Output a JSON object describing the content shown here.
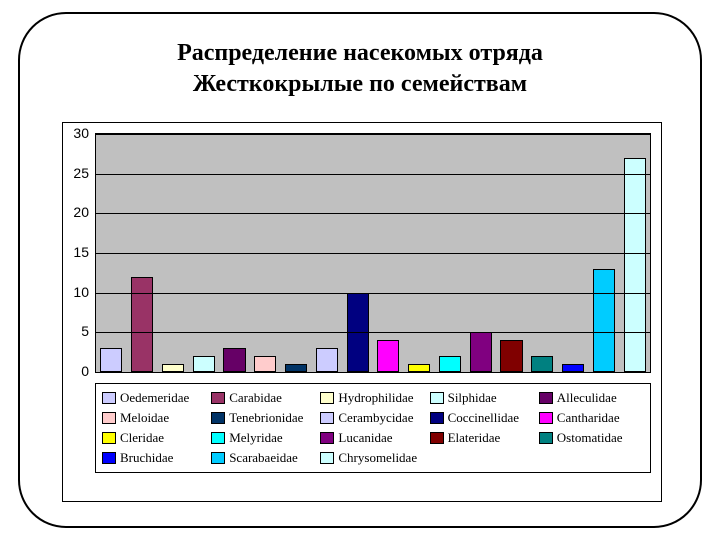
{
  "title_line1": "Распределение насекомых отряда",
  "title_line2": "Жесткокрылые по семействам",
  "chart": {
    "type": "bar",
    "background_color": "#c0c0c0",
    "grid_color": "#000000",
    "ylim": [
      0,
      30
    ],
    "yticks": [
      0,
      5,
      10,
      15,
      20,
      25,
      30
    ],
    "label_fontsize": 14,
    "series": [
      {
        "name": "Oedemeridae",
        "value": 3,
        "color": "#ccccff"
      },
      {
        "name": "Carabidae",
        "value": 12,
        "color": "#993366"
      },
      {
        "name": "Hydrophilidae",
        "value": 1,
        "color": "#ffffcc"
      },
      {
        "name": "Silphidae",
        "value": 2,
        "color": "#ccffff"
      },
      {
        "name": "Alleculidae",
        "value": 3,
        "color": "#660066"
      },
      {
        "name": "Meloidae",
        "value": 2,
        "color": "#ffcccc"
      },
      {
        "name": "Tenebrionidae",
        "value": 1,
        "color": "#003366"
      },
      {
        "name": "Cerambycidae",
        "value": 3,
        "color": "#ccccff"
      },
      {
        "name": "Coccinellidae",
        "value": 10,
        "color": "#000080"
      },
      {
        "name": "Cantharidae",
        "value": 4,
        "color": "#ff00ff"
      },
      {
        "name": "Cleridae",
        "value": 1,
        "color": "#ffff00"
      },
      {
        "name": "Melyridae",
        "value": 2,
        "color": "#00ffff"
      },
      {
        "name": "Lucanidae",
        "value": 5,
        "color": "#800080"
      },
      {
        "name": "Elateridae",
        "value": 4,
        "color": "#800000"
      },
      {
        "name": "Ostomatidae",
        "value": 2,
        "color": "#008080"
      },
      {
        "name": "Bruchidae",
        "value": 1,
        "color": "#0000ff"
      },
      {
        "name": "Scarabaeidae",
        "value": 13,
        "color": "#00ccff"
      },
      {
        "name": "Chrysomelidae",
        "value": 27,
        "color": "#ccffff"
      }
    ]
  }
}
